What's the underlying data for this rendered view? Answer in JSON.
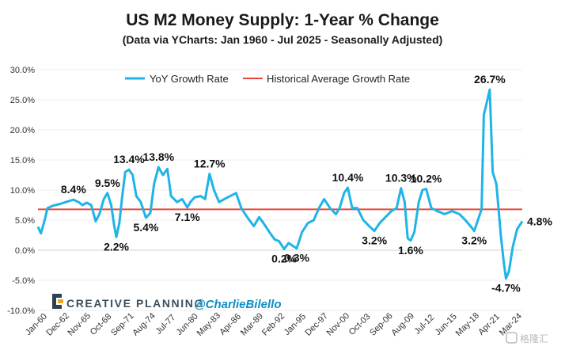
{
  "chart_data": {
    "type": "line",
    "title": "US M2 Money Supply: 1-Year % Change",
    "subtitle": "(Data via YCharts: Jan 1960 - Jul 2025 - Seasonally Adjusted)",
    "xlabel": "",
    "ylabel": "",
    "ylim": [
      -10,
      30
    ],
    "y_ticks": [
      "30.0%",
      "25.0%",
      "20.0%",
      "15.0%",
      "10.0%",
      "5.0%",
      "0.0%",
      "-5.0%",
      "-10.0%"
    ],
    "x_range": [
      1960.0,
      2025.5
    ],
    "x_ticks": [
      {
        "label": "Jan-60",
        "t": 1960.0
      },
      {
        "label": "Dec-62",
        "t": 1962.92
      },
      {
        "label": "Nov-65",
        "t": 1965.83
      },
      {
        "label": "Oct-68",
        "t": 1968.75
      },
      {
        "label": "Sep-71",
        "t": 1971.67
      },
      {
        "label": "Aug-74",
        "t": 1974.58
      },
      {
        "label": "Jul-77",
        "t": 1977.5
      },
      {
        "label": "Jun-80",
        "t": 1980.42
      },
      {
        "label": "May-83",
        "t": 1983.33
      },
      {
        "label": "Apr-86",
        "t": 1986.25
      },
      {
        "label": "Mar-89",
        "t": 1989.17
      },
      {
        "label": "Feb-92",
        "t": 1992.08
      },
      {
        "label": "Jan-95",
        "t": 1995.0
      },
      {
        "label": "Dec-97",
        "t": 1997.92
      },
      {
        "label": "Nov-00",
        "t": 2000.83
      },
      {
        "label": "Oct-03",
        "t": 2003.75
      },
      {
        "label": "Sep-06",
        "t": 2006.67
      },
      {
        "label": "Aug-09",
        "t": 2009.58
      },
      {
        "label": "Jul-12",
        "t": 2012.5
      },
      {
        "label": "Jun-15",
        "t": 2015.42
      },
      {
        "label": "May-18",
        "t": 2018.33
      },
      {
        "label": "Apr-21",
        "t": 2021.25
      },
      {
        "label": "Mar-24",
        "t": 2024.17
      }
    ],
    "legend_position": "top",
    "series": [
      {
        "name": "YoY Growth Rate",
        "color": "#1fb4e8",
        "points": [
          [
            1960.0,
            3.9
          ],
          [
            1960.4,
            2.8
          ],
          [
            1960.9,
            5.0
          ],
          [
            1961.3,
            7.0
          ],
          [
            1962.0,
            7.4
          ],
          [
            1963.0,
            7.7
          ],
          [
            1964.0,
            8.1
          ],
          [
            1964.8,
            8.4
          ],
          [
            1965.5,
            8.0
          ],
          [
            1966.0,
            7.5
          ],
          [
            1966.6,
            7.9
          ],
          [
            1967.2,
            7.5
          ],
          [
            1967.8,
            4.8
          ],
          [
            1968.3,
            6.0
          ],
          [
            1968.9,
            8.5
          ],
          [
            1969.4,
            9.5
          ],
          [
            1969.9,
            7.5
          ],
          [
            1970.3,
            4.2
          ],
          [
            1970.6,
            2.2
          ],
          [
            1971.0,
            4.5
          ],
          [
            1971.4,
            9.0
          ],
          [
            1971.8,
            13.0
          ],
          [
            1972.3,
            13.4
          ],
          [
            1972.8,
            12.5
          ],
          [
            1973.3,
            9.0
          ],
          [
            1973.9,
            8.0
          ],
          [
            1974.6,
            5.4
          ],
          [
            1975.2,
            6.2
          ],
          [
            1975.7,
            11.0
          ],
          [
            1976.3,
            13.8
          ],
          [
            1976.9,
            12.5
          ],
          [
            1977.5,
            13.5
          ],
          [
            1978.0,
            9.0
          ],
          [
            1978.8,
            8.0
          ],
          [
            1979.5,
            8.5
          ],
          [
            1980.2,
            7.1
          ],
          [
            1980.6,
            8.0
          ],
          [
            1981.2,
            8.8
          ],
          [
            1982.0,
            9.0
          ],
          [
            1982.6,
            8.5
          ],
          [
            1983.2,
            12.7
          ],
          [
            1983.8,
            10.0
          ],
          [
            1984.5,
            8.0
          ],
          [
            1985.2,
            8.5
          ],
          [
            1986.0,
            9.0
          ],
          [
            1986.8,
            9.5
          ],
          [
            1987.5,
            7.0
          ],
          [
            1988.3,
            5.5
          ],
          [
            1989.2,
            4.0
          ],
          [
            1989.9,
            5.5
          ],
          [
            1990.5,
            4.5
          ],
          [
            1991.3,
            3.0
          ],
          [
            1992.0,
            1.8
          ],
          [
            1992.6,
            1.5
          ],
          [
            1993.3,
            0.2
          ],
          [
            1993.9,
            1.2
          ],
          [
            1994.5,
            0.7
          ],
          [
            1995.0,
            0.3
          ],
          [
            1995.7,
            3.0
          ],
          [
            1996.5,
            4.5
          ],
          [
            1997.3,
            5.0
          ],
          [
            1998.0,
            7.0
          ],
          [
            1998.7,
            8.5
          ],
          [
            1999.5,
            7.0
          ],
          [
            2000.3,
            6.0
          ],
          [
            2000.8,
            7.0
          ],
          [
            2001.4,
            9.5
          ],
          [
            2001.9,
            10.4
          ],
          [
            2002.5,
            7.0
          ],
          [
            2003.2,
            7.0
          ],
          [
            2004.0,
            5.0
          ],
          [
            2004.8,
            4.0
          ],
          [
            2005.5,
            3.2
          ],
          [
            2006.2,
            4.5
          ],
          [
            2007.0,
            5.5
          ],
          [
            2007.8,
            6.5
          ],
          [
            2008.5,
            7.0
          ],
          [
            2009.1,
            10.3
          ],
          [
            2009.6,
            8.0
          ],
          [
            2010.0,
            2.0
          ],
          [
            2010.4,
            1.6
          ],
          [
            2010.9,
            3.0
          ],
          [
            2011.5,
            8.0
          ],
          [
            2012.0,
            10.0
          ],
          [
            2012.5,
            10.2
          ],
          [
            2013.2,
            7.0
          ],
          [
            2014.0,
            6.5
          ],
          [
            2015.0,
            6.0
          ],
          [
            2016.0,
            6.5
          ],
          [
            2017.0,
            6.0
          ],
          [
            2017.8,
            5.0
          ],
          [
            2018.5,
            4.0
          ],
          [
            2019.0,
            3.2
          ],
          [
            2019.5,
            5.0
          ],
          [
            2020.0,
            6.8
          ],
          [
            2020.3,
            22.5
          ],
          [
            2020.6,
            24.0
          ],
          [
            2021.1,
            26.7
          ],
          [
            2021.5,
            13.0
          ],
          [
            2022.0,
            11.0
          ],
          [
            2022.6,
            2.5
          ],
          [
            2023.0,
            -2.0
          ],
          [
            2023.3,
            -4.7
          ],
          [
            2023.7,
            -3.5
          ],
          [
            2024.2,
            0.5
          ],
          [
            2024.8,
            3.5
          ],
          [
            2025.5,
            4.8
          ]
        ]
      },
      {
        "name": "Historical Average Growth Rate",
        "color": "#e8463a",
        "value": 6.8
      }
    ],
    "annotations": [
      {
        "text": "8.4%",
        "t": 1964.8,
        "v": 8.4
      },
      {
        "text": "9.5%",
        "t": 1969.4,
        "v": 9.5
      },
      {
        "text": "2.2%",
        "t": 1970.6,
        "v": 2.2
      },
      {
        "text": "13.4%",
        "t": 1972.3,
        "v": 13.4
      },
      {
        "text": "5.4%",
        "t": 1974.6,
        "v": 5.4
      },
      {
        "text": "13.8%",
        "t": 1976.3,
        "v": 13.8
      },
      {
        "text": "7.1%",
        "t": 1980.2,
        "v": 7.1
      },
      {
        "text": "12.7%",
        "t": 1983.2,
        "v": 12.7
      },
      {
        "text": "0.2%",
        "t": 1993.3,
        "v": 0.2
      },
      {
        "text": "0.3%",
        "t": 1995.0,
        "v": 0.3
      },
      {
        "text": "10.4%",
        "t": 2001.9,
        "v": 10.4
      },
      {
        "text": "3.2%",
        "t": 2005.5,
        "v": 3.2
      },
      {
        "text": "10.3%",
        "t": 2009.1,
        "v": 10.3
      },
      {
        "text": "1.6%",
        "t": 2010.4,
        "v": 1.6
      },
      {
        "text": "10.2%",
        "t": 2012.5,
        "v": 10.2
      },
      {
        "text": "3.2%",
        "t": 2019.0,
        "v": 3.2
      },
      {
        "text": "26.7%",
        "t": 2021.1,
        "v": 26.7
      },
      {
        "text": "-4.7%",
        "t": 2023.3,
        "v": -4.7
      },
      {
        "text": "4.8%",
        "t": 2025.5,
        "v": 4.8
      }
    ]
  },
  "branding": {
    "company": "CREATIVE PLANNING",
    "handle": "@CharlieBilello",
    "watermark": "格隆汇"
  }
}
